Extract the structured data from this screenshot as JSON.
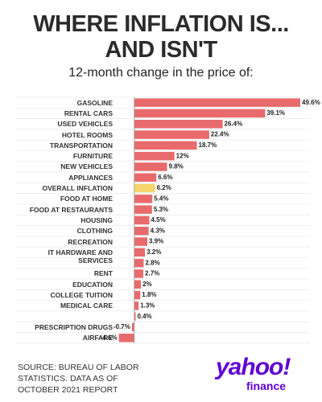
{
  "chart_data": {
    "type": "hbar",
    "title_lines": [
      "WHERE INFLATION IS...",
      "AND ISN'T"
    ],
    "subtitle": "12-month change in the price of:",
    "categories": [
      "GASOLINE",
      "RENTAL CARS",
      "USED VEHICLES",
      "HOTEL ROOMS",
      "TRANSPORTATION",
      "FURNITURE",
      "NEW VEHICLES",
      "APPLIANCES",
      "OVERALL INFLATION",
      "FOOD AT HOME",
      "FOOD AT RESTAURANTS",
      "HOUSING",
      "CLOTHING",
      "RECREATION",
      "IT HARDWARE AND SERVICES",
      null,
      "RENT",
      "EDUCATION",
      "COLLEGE TUITION",
      "MEDICAL CARE",
      null,
      "PRESCRIPTION DRUGS",
      "AIRFARE"
    ],
    "values": [
      49.6,
      39.1,
      26.4,
      22.4,
      18.7,
      12,
      9.8,
      6.6,
      6.2,
      5.4,
      5.3,
      4.5,
      4.3,
      3.9,
      3.2,
      2.8,
      2.7,
      2,
      1.8,
      1.3,
      0.4,
      -0.7,
      -4.6
    ],
    "value_labels": [
      "49.6%",
      "39.1%",
      "26.4%",
      "22.4%",
      "18.7%",
      "12%",
      "9.8%",
      "6.6%",
      "6.2%",
      "5.4%",
      "5.3%",
      "4.5%",
      "4.3%",
      "3.9%",
      "3.2%",
      "2.8%",
      "2.7%",
      "2%",
      "1.8%",
      "1.3%",
      "0.4%",
      "-0.7%",
      "-4.6%"
    ],
    "color": "#e96a6c",
    "highlight": {
      "index": 8,
      "color": "#f6d46b"
    },
    "xlim": [
      -5,
      52
    ],
    "source": "SOURCE: BUREAU OF LABOR STATISTICS. DATA AS OF OCTOBER 2021 REPORT",
    "logo": {
      "brand": "yahoo!",
      "product": "finance"
    }
  }
}
